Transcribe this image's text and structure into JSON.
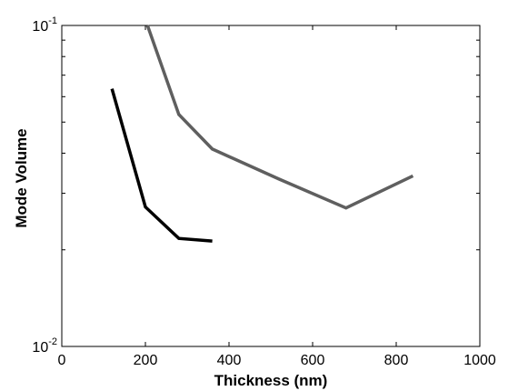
{
  "chart_data": {
    "type": "line",
    "title": "",
    "xlabel": "Thickness (nm)",
    "ylabel": "Mode Volume",
    "xlim": [
      0,
      1000
    ],
    "ylim": [
      0.01,
      0.1
    ],
    "yscale": "log",
    "grid": false,
    "x_ticks": [
      {
        "value": 0,
        "label": "0"
      },
      {
        "value": 200,
        "label": "200"
      },
      {
        "value": 400,
        "label": "400"
      },
      {
        "value": 600,
        "label": "600"
      },
      {
        "value": 800,
        "label": "800"
      },
      {
        "value": 1000,
        "label": "1000"
      }
    ],
    "y_ticks": [
      {
        "value": 0.01,
        "base": "10",
        "exponent": "-2"
      },
      {
        "value": 0.1,
        "base": "10",
        "exponent": "-1"
      }
    ],
    "series": [
      {
        "color": "#000000",
        "points": [
          [
            120,
            0.0635
          ],
          [
            200,
            0.0272
          ],
          [
            280,
            0.0217
          ],
          [
            360,
            0.0213
          ]
        ]
      },
      {
        "color": "#5f5f5f",
        "points": [
          [
            205,
            0.1
          ],
          [
            280,
            0.0528
          ],
          [
            360,
            0.0412
          ],
          [
            520,
            0.0332
          ],
          [
            680,
            0.027
          ],
          [
            840,
            0.034
          ]
        ]
      }
    ]
  }
}
